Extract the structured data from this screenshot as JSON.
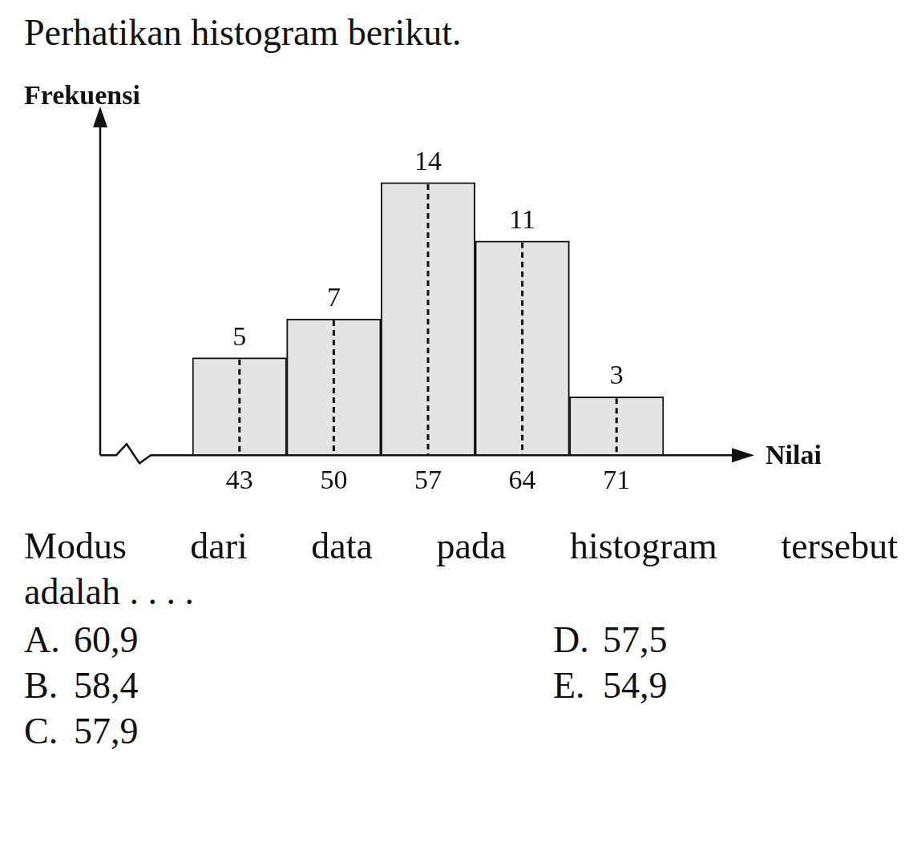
{
  "intro": "Perhatikan histogram berikut.",
  "chart_data": {
    "type": "bar",
    "x_label": "Nilai",
    "y_label": "Frekuensi",
    "categories": [
      "43",
      "50",
      "57",
      "64",
      "71"
    ],
    "values": [
      5,
      7,
      14,
      11,
      3
    ],
    "ylim": [
      0,
      17
    ],
    "data_labels": true,
    "tick_labels": "x",
    "grid": false,
    "color": "#e4e4e4"
  },
  "question": [
    "Modus dari data pada histogram tersebut",
    "adalah . . . ."
  ],
  "options": [
    {
      "key": "A.",
      "text": "60,9"
    },
    {
      "key": "B.",
      "text": "58,4"
    },
    {
      "key": "C.",
      "text": "57,9"
    },
    {
      "key": "D.",
      "text": "57,5"
    },
    {
      "key": "E.",
      "text": "54,9"
    }
  ]
}
